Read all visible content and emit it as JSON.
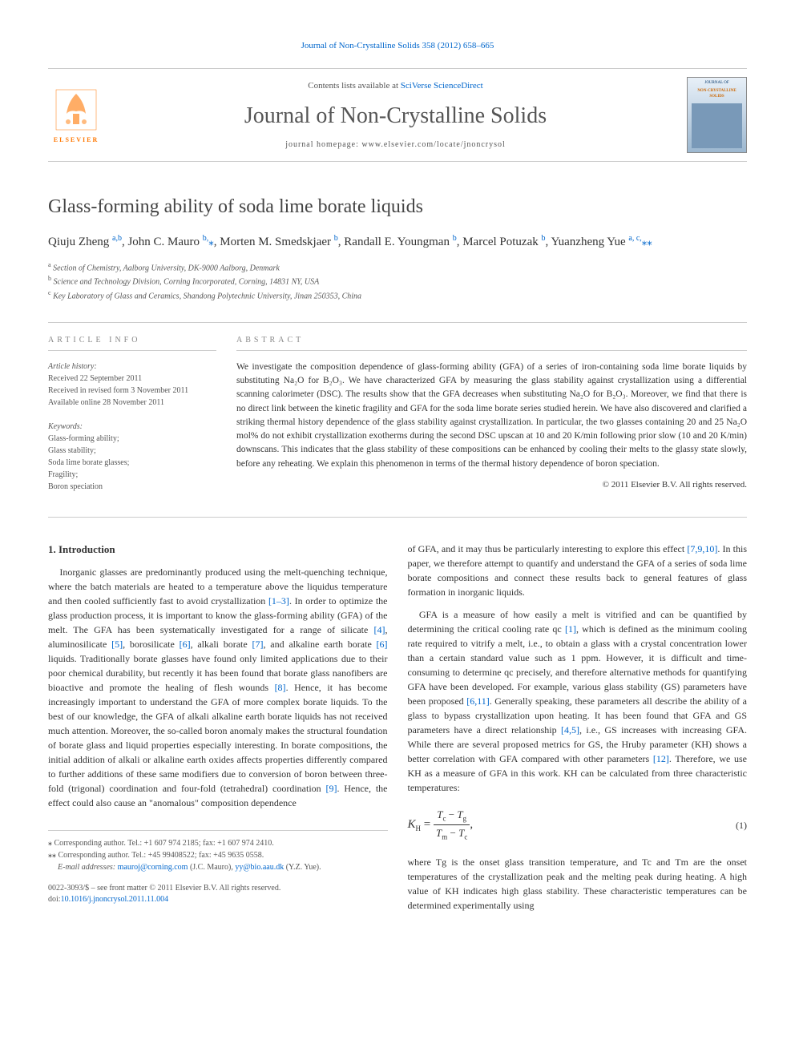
{
  "header_citation": "Journal of Non-Crystalline Solids 358 (2012) 658–665",
  "journal_header": {
    "contents_line_prefix": "Contents lists available at ",
    "contents_line_link": "SciVerse ScienceDirect",
    "journal_title": "Journal of Non-Crystalline Solids",
    "homepage_prefix": "journal homepage: ",
    "homepage": "www.elsevier.com/locate/jnoncrysol",
    "publisher_name": "ELSEVIER",
    "cover_text_top": "JOURNAL OF",
    "cover_text_main": "NON-CRYSTALLINE SOLIDS"
  },
  "article": {
    "title": "Glass-forming ability of soda lime borate liquids",
    "authors_html": "Qiuju Zheng <sup>a,b</sup>, John C. Mauro <sup>b,</sup><span class='author-star'>⁎</span>, Morten M. Smedskjaer <sup>b</sup>, Randall E. Youngman <sup>b</sup>, Marcel Potuzak <sup>b</sup>, Yuanzheng Yue <sup>a, c,</sup><span class='author-star'>⁎⁎</span>",
    "affiliations": [
      {
        "sup": "a",
        "text": "Section of Chemistry, Aalborg University, DK-9000 Aalborg, Denmark"
      },
      {
        "sup": "b",
        "text": "Science and Technology Division, Corning Incorporated, Corning, 14831 NY, USA"
      },
      {
        "sup": "c",
        "text": "Key Laboratory of Glass and Ceramics, Shandong Polytechnic University, Jinan 250353, China"
      }
    ]
  },
  "info": {
    "heading": "article info",
    "history_label": "Article history:",
    "received": "Received 22 September 2011",
    "revised": "Received in revised form 3 November 2011",
    "online": "Available online 28 November 2011",
    "keywords_label": "Keywords:",
    "keywords": [
      "Glass-forming ability;",
      "Glass stability;",
      "Soda lime borate glasses;",
      "Fragility;",
      "Boron speciation"
    ]
  },
  "abstract": {
    "heading": "abstract",
    "text": "We investigate the composition dependence of glass-forming ability (GFA) of a series of iron-containing soda lime borate liquids by substituting Na₂O for B₂O₃. We have characterized GFA by measuring the glass stability against crystallization using a differential scanning calorimeter (DSC). The results show that the GFA decreases when substituting Na₂O for B₂O₃. Moreover, we find that there is no direct link between the kinetic fragility and GFA for the soda lime borate series studied herein. We have also discovered and clarified a striking thermal history dependence of the glass stability against crystallization. In particular, the two glasses containing 20 and 25 Na₂O mol% do not exhibit crystallization exotherms during the second DSC upscan at 10 and 20 K/min following prior slow (10 and 20 K/min) downscans. This indicates that the glass stability of these compositions can be enhanced by cooling their melts to the glassy state slowly, before any reheating. We explain this phenomenon in terms of the thermal history dependence of boron speciation.",
    "copyright": "© 2011 Elsevier B.V. All rights reserved."
  },
  "body": {
    "section1_heading": "1. Introduction",
    "col1_p1_pre": "Inorganic glasses are predominantly produced using the melt-quenching technique, where the batch materials are heated to a temperature above the liquidus temperature and then cooled sufficiently fast to avoid crystallization ",
    "col1_p1_ref1": "[1–3]",
    "col1_p1_mid1": ". In order to optimize the glass production process, it is important to know the glass-forming ability (GFA) of the melt. The GFA has been systematically investigated for a range of silicate ",
    "col1_p1_ref2": "[4]",
    "col1_p1_mid2": ", aluminosilicate ",
    "col1_p1_ref3": "[5]",
    "col1_p1_mid3": ", borosilicate ",
    "col1_p1_ref4": "[6]",
    "col1_p1_mid4": ", alkali borate ",
    "col1_p1_ref5": "[7]",
    "col1_p1_mid5": ", and alkaline earth borate ",
    "col1_p1_ref6": "[6]",
    "col1_p1_mid6": " liquids. Traditionally borate glasses have found only limited applications due to their poor chemical durability, but recently it has been found that borate glass nanofibers are bioactive and promote the healing of flesh wounds ",
    "col1_p1_ref7": "[8]",
    "col1_p1_mid7": ". Hence, it has become increasingly important to understand the GFA of more complex borate liquids. To the best of our knowledge, the GFA of alkali alkaline earth borate liquids has not received much attention. Moreover, the so-called boron anomaly makes the structural foundation of borate glass and liquid properties especially interesting. In borate compositions, the initial addition of alkali or alkaline earth oxides affects properties differently compared to further additions of these same modifiers due to conversion of boron between three-fold (trigonal) coordination and four-fold (tetrahedral) coordination ",
    "col1_p1_ref8": "[9]",
    "col1_p1_end": ". Hence, the effect could also cause an \"anomalous\" composition dependence",
    "col2_p1_pre": "of GFA, and it may thus be particularly interesting to explore this effect ",
    "col2_p1_ref1": "[7,9,10]",
    "col2_p1_end": ". In this paper, we therefore attempt to quantify and understand the GFA of a series of soda lime borate compositions and connect these results back to general features of glass formation in inorganic liquids.",
    "col2_p2_pre": "GFA is a measure of how easily a melt is vitrified and can be quantified by determining the critical cooling rate qc ",
    "col2_p2_ref1": "[1]",
    "col2_p2_mid1": ", which is defined as the minimum cooling rate required to vitrify a melt, i.e., to obtain a glass with a crystal concentration lower than a certain standard value such as 1 ppm. However, it is difficult and time-consuming to determine qc precisely, and therefore alternative methods for quantifying GFA have been developed. For example, various glass stability (GS) parameters have been proposed ",
    "col2_p2_ref2": "[6,11]",
    "col2_p2_mid2": ". Generally speaking, these parameters all describe the ability of a glass to bypass crystallization upon heating. It has been found that GFA and GS parameters have a direct relationship ",
    "col2_p2_ref3": "[4,5]",
    "col2_p2_mid3": ", i.e., GS increases with increasing GFA. While there are several proposed metrics for GS, the Hruby parameter (KH) shows a better correlation with GFA compared with other parameters ",
    "col2_p2_ref4": "[12]",
    "col2_p2_end": ". Therefore, we use KH as a measure of GFA in this work. KH can be calculated from three characteristic temperatures:",
    "col2_p3": "where Tg is the onset glass transition temperature, and Tc and Tm are the onset temperatures of the crystallization peak and the melting peak during heating. A high value of KH indicates high glass stability. These characteristic temperatures can be determined experimentally using"
  },
  "equation": {
    "lhs": "K",
    "lhs_sub": "H",
    "eq": " = ",
    "num": "Tc − Tg",
    "den": "Tm − Tc",
    "comma": ",",
    "number": "(1)"
  },
  "footnotes": {
    "corr1_star": "⁎",
    "corr1": "Corresponding author. Tel.: +1 607 974 2185; fax: +1 607 974 2410.",
    "corr2_star": "⁎⁎",
    "corr2": "Corresponding author. Tel.: +45 99408522; fax: +45 9635 0558.",
    "email_label": "E-mail addresses: ",
    "email1": "mauroj@corning.com",
    "email1_who": " (J.C. Mauro), ",
    "email2": "yy@bio.aau.dk",
    "email2_who": " (Y.Z. Yue)."
  },
  "footer": {
    "line1": "0022-3093/$ – see front matter © 2011 Elsevier B.V. All rights reserved.",
    "doi_prefix": "doi:",
    "doi": "10.1016/j.jnoncrysol.2011.11.004"
  },
  "colors": {
    "link": "#0066cc",
    "text": "#333333",
    "muted": "#555555",
    "border": "#cccccc",
    "elsevier_orange": "#ff7700"
  }
}
